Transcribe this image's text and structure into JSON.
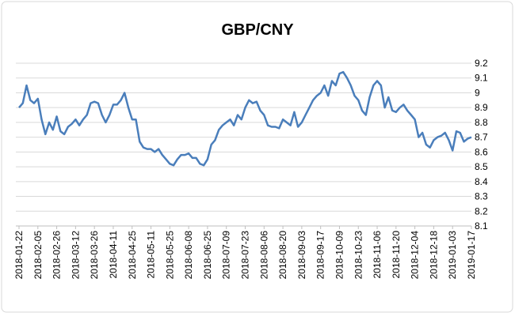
{
  "chart_data": {
    "type": "line",
    "title": "GBP/CNY",
    "categories": [
      "2018-01-22",
      null,
      null,
      null,
      null,
      "2018-02-05",
      null,
      null,
      null,
      null,
      "2018-02-26",
      null,
      null,
      null,
      null,
      "2018-03-12",
      null,
      null,
      null,
      null,
      "2018-03-26",
      null,
      null,
      null,
      null,
      "2018-04-11",
      null,
      null,
      null,
      null,
      "2018-04-25",
      null,
      null,
      null,
      null,
      "2018-05-11",
      null,
      null,
      null,
      null,
      "2018-05-25",
      null,
      null,
      null,
      null,
      "2018-06-08",
      null,
      null,
      null,
      null,
      "2018-06-25",
      null,
      null,
      null,
      null,
      "2018-07-09",
      null,
      null,
      null,
      null,
      "2018-07-23",
      null,
      null,
      null,
      null,
      "2018-08-06",
      null,
      null,
      null,
      null,
      "2018-08-20",
      null,
      null,
      null,
      null,
      "2018-09-03",
      null,
      null,
      null,
      null,
      "2018-09-17",
      null,
      null,
      null,
      null,
      "2018-10-09",
      null,
      null,
      null,
      null,
      "2018-10-23",
      null,
      null,
      null,
      null,
      "2018-11-06",
      null,
      null,
      null,
      null,
      "2018-11-20",
      null,
      null,
      null,
      null,
      "2018-12-04",
      null,
      null,
      null,
      null,
      "2018-12-18",
      null,
      null,
      null,
      null,
      "2019-01-03",
      null,
      null,
      null,
      null,
      "2019-01-17"
    ],
    "series": [
      {
        "name": "GBP/CNY",
        "color": "#4a7ebb",
        "values": [
          8.9,
          8.93,
          9.05,
          8.95,
          8.93,
          8.96,
          8.82,
          8.72,
          8.8,
          8.75,
          8.84,
          8.74,
          8.72,
          8.77,
          8.79,
          8.82,
          8.78,
          8.82,
          8.85,
          8.93,
          8.94,
          8.93,
          8.85,
          8.8,
          8.85,
          8.92,
          8.92,
          8.95,
          9.0,
          8.9,
          8.82,
          8.82,
          8.67,
          8.63,
          8.62,
          8.62,
          8.6,
          8.62,
          8.58,
          8.55,
          8.52,
          8.51,
          8.55,
          8.58,
          8.58,
          8.59,
          8.56,
          8.56,
          8.52,
          8.51,
          8.55,
          8.65,
          8.68,
          8.75,
          8.78,
          8.8,
          8.82,
          8.78,
          8.85,
          8.82,
          8.9,
          8.95,
          8.93,
          8.94,
          8.88,
          8.85,
          8.78,
          8.77,
          8.77,
          8.76,
          8.82,
          8.8,
          8.78,
          8.87,
          8.77,
          8.8,
          8.85,
          8.9,
          8.95,
          8.98,
          9.0,
          9.05,
          8.98,
          9.08,
          9.05,
          9.13,
          9.14,
          9.1,
          9.05,
          8.98,
          8.95,
          8.88,
          8.85,
          8.97,
          9.05,
          9.08,
          9.05,
          8.9,
          8.97,
          8.88,
          8.87,
          8.9,
          8.92,
          8.88,
          8.85,
          8.82,
          8.7,
          8.73,
          8.65,
          8.63,
          8.68,
          8.7,
          8.71,
          8.73,
          8.68,
          8.61,
          8.74,
          8.73,
          8.67,
          8.69,
          8.7
        ]
      }
    ],
    "ylim": [
      8.1,
      9.2
    ],
    "yticks": [
      8.1,
      8.2,
      8.3,
      8.4,
      8.5,
      8.6,
      8.7,
      8.8,
      8.9,
      9,
      9.1,
      9.2
    ],
    "grid": true
  }
}
